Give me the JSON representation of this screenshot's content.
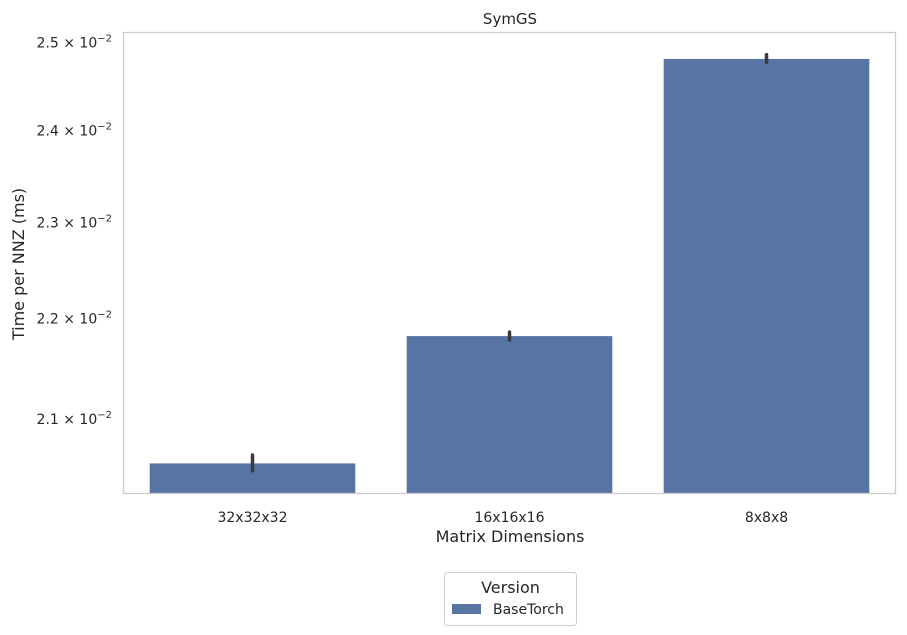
{
  "chart_data": {
    "type": "bar",
    "title": "SymGS",
    "xlabel": "Matrix Dimensions",
    "ylabel": "Time per NNZ (ms)",
    "categories": [
      "32x32x32",
      "16x16x16",
      "8x8x8"
    ],
    "series": [
      {
        "name": "BaseTorch",
        "values": [
          0.02057,
          0.02182,
          0.02481
        ],
        "error_low": [
          0.0205,
          0.02178,
          0.02477
        ],
        "error_high": [
          0.02065,
          0.02186,
          0.02486
        ],
        "color": "#5874a2"
      }
    ],
    "yscale": "log",
    "ylim": [
      0.02029,
      0.02511
    ],
    "yticks": [
      0.021,
      0.022,
      0.023,
      0.024,
      0.025
    ],
    "ytick_labels": [
      {
        "mantissa": "2.1",
        "exponent": "−2"
      },
      {
        "mantissa": "2.2",
        "exponent": "−2"
      },
      {
        "mantissa": "2.3",
        "exponent": "−2"
      },
      {
        "mantissa": "2.4",
        "exponent": "−2"
      },
      {
        "mantissa": "2.5",
        "exponent": "−2"
      }
    ],
    "grid": false,
    "legend": {
      "title": "Version",
      "position": "bottom-center",
      "entries": [
        "BaseTorch"
      ]
    },
    "colors": {
      "bar": "#5874a2",
      "errorbar": "#3a3a3a",
      "spine": "#cccccc",
      "text": "#262626"
    }
  }
}
